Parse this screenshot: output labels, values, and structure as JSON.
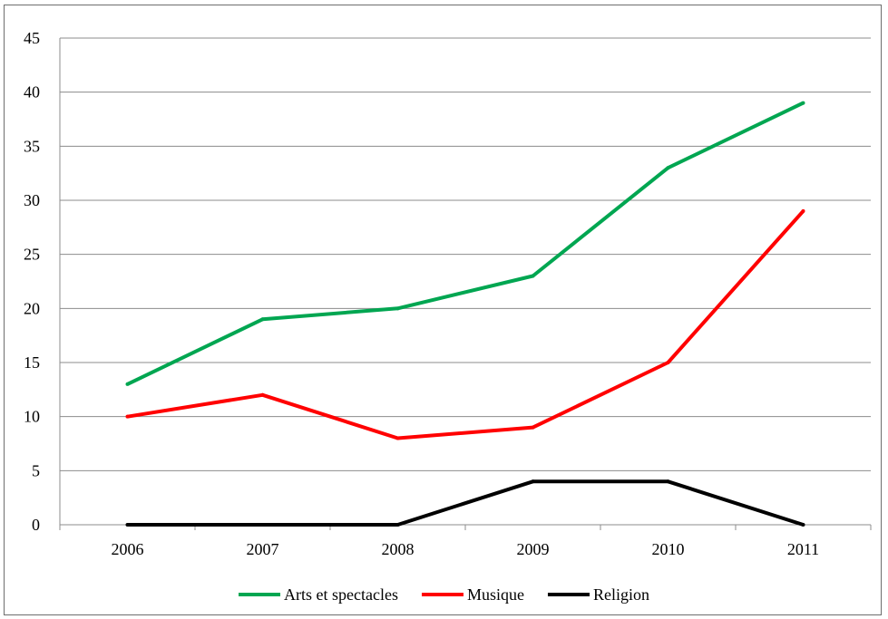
{
  "chart_data": {
    "type": "line",
    "title": "",
    "xlabel": "",
    "ylabel": "",
    "categories": [
      "2006",
      "2007",
      "2008",
      "2009",
      "2010",
      "2011"
    ],
    "ylim": [
      0,
      45
    ],
    "yticks": [
      "0",
      "5",
      "10",
      "15",
      "20",
      "25",
      "30",
      "35",
      "40",
      "45"
    ],
    "grid": true,
    "legend": "bottom",
    "series": [
      {
        "name": "Arts et spectacles",
        "color": "#00a651",
        "values": [
          13,
          19,
          20,
          23,
          33,
          39
        ]
      },
      {
        "name": "Musique",
        "color": "#ff0000",
        "values": [
          10,
          12,
          8,
          9,
          15,
          29
        ]
      },
      {
        "name": "Religion",
        "color": "#000000",
        "values": [
          0,
          0,
          0,
          4,
          4,
          0
        ]
      }
    ]
  }
}
